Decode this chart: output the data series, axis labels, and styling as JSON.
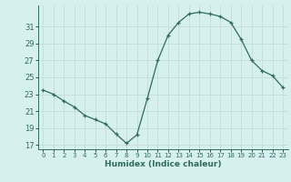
{
  "x": [
    0,
    1,
    2,
    3,
    4,
    5,
    6,
    7,
    8,
    9,
    10,
    11,
    12,
    13,
    14,
    15,
    16,
    17,
    18,
    19,
    20,
    21,
    22,
    23
  ],
  "y": [
    23.5,
    23.0,
    22.2,
    21.5,
    20.5,
    20.0,
    19.5,
    18.3,
    17.2,
    18.2,
    22.5,
    27.0,
    30.0,
    31.5,
    32.5,
    32.7,
    32.5,
    32.2,
    31.5,
    29.5,
    27.0,
    25.8,
    25.2,
    23.8
  ],
  "xlim": [
    -0.5,
    23.5
  ],
  "ylim": [
    16.5,
    33.5
  ],
  "yticks": [
    17,
    19,
    21,
    23,
    25,
    27,
    29,
    31
  ],
  "xticks": [
    0,
    1,
    2,
    3,
    4,
    5,
    6,
    7,
    8,
    9,
    10,
    11,
    12,
    13,
    14,
    15,
    16,
    17,
    18,
    19,
    20,
    21,
    22,
    23
  ],
  "xlabel": "Humidex (Indice chaleur)",
  "line_color": "#2e6b5e",
  "marker": "+",
  "bg_color": "#d6f0f0",
  "grid_color": "#c8dede"
}
